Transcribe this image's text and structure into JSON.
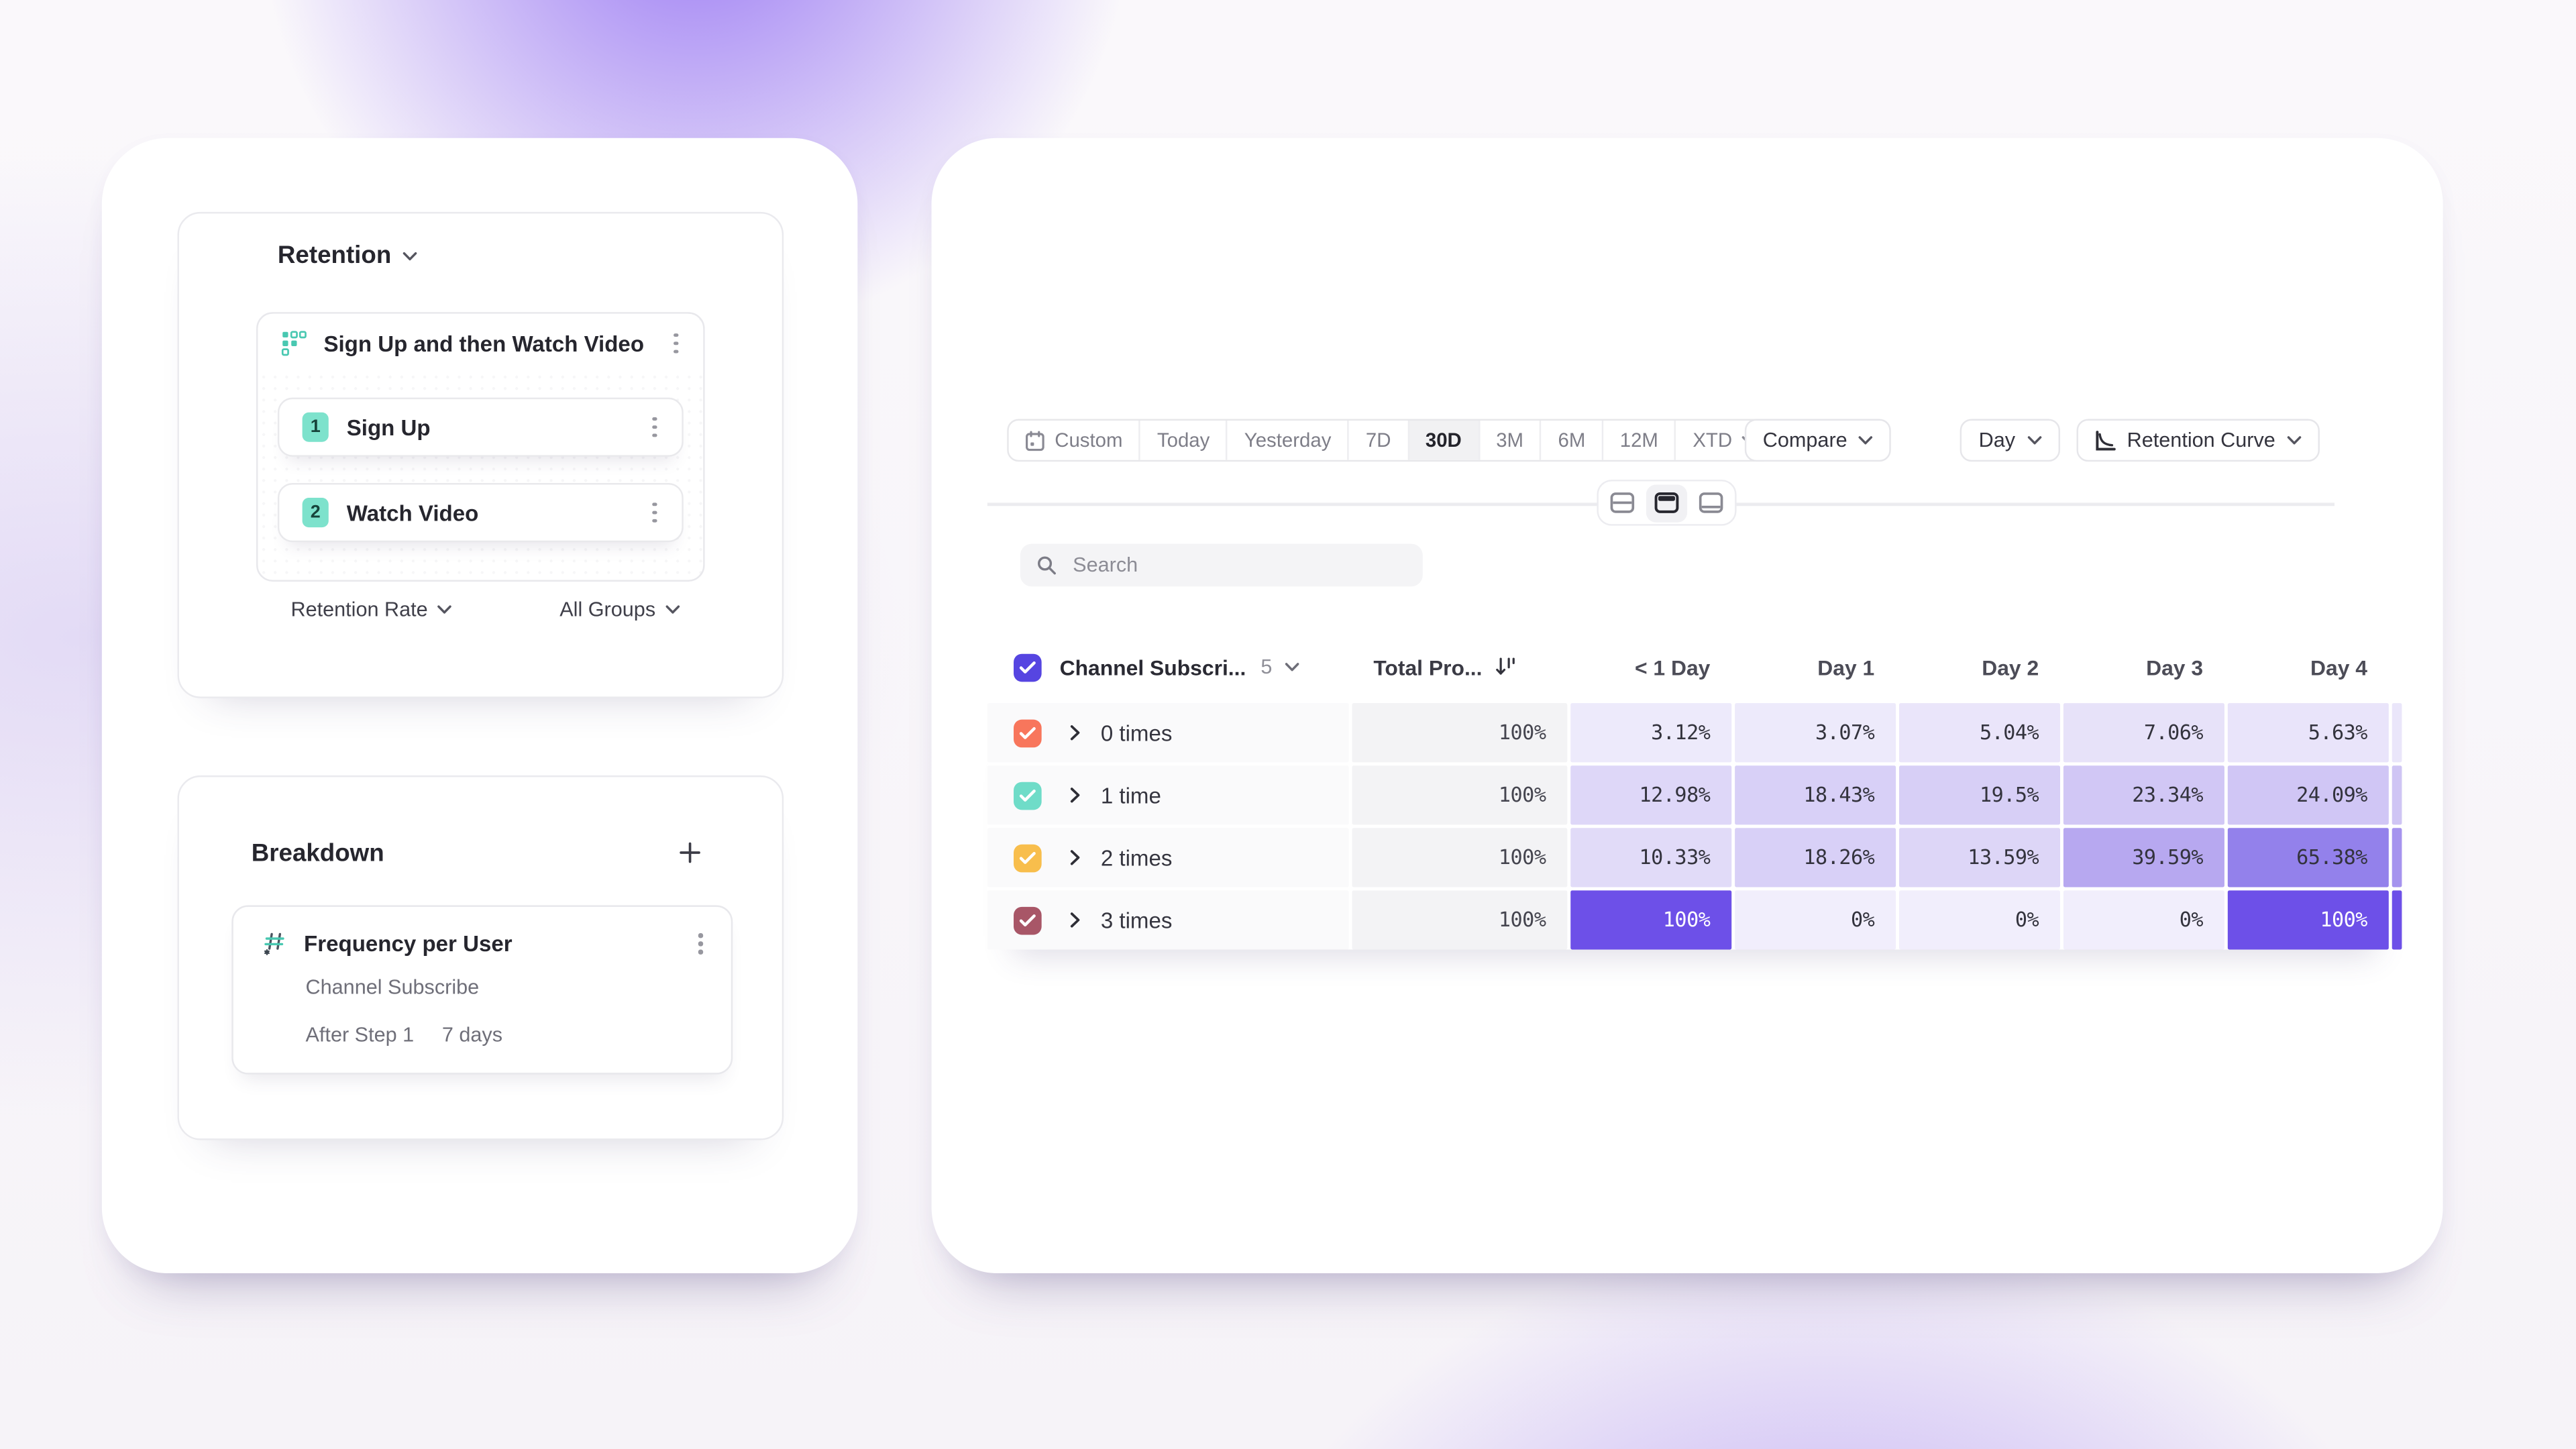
{
  "colors": {
    "accent_purple": "#6D50E8",
    "header_checkbox": "#5645E1",
    "series": [
      "#F8765C",
      "#6FDCC8",
      "#F8BE4C",
      "#A85667"
    ],
    "total_col_bg": "#F3F3F5",
    "label_col_bg": "#FAFAFB",
    "teal_badge": "#7DE2CC"
  },
  "query_panel": {
    "title": "Retention",
    "group_title": "Sign Up and then Watch Video",
    "steps": [
      {
        "num": "1",
        "label": "Sign Up"
      },
      {
        "num": "2",
        "label": "Watch Video"
      }
    ],
    "metric_label": "Retention Rate",
    "groups_label": "All Groups"
  },
  "breakdown_panel": {
    "title": "Breakdown",
    "item_title": "Frequency per User",
    "item_event": "Channel Subscribe",
    "item_after_label": "After Step 1",
    "item_after_value": "7 days"
  },
  "toolbar": {
    "segments": [
      "Custom",
      "Today",
      "Yesterday",
      "7D",
      "30D",
      "3M",
      "6M",
      "12M",
      "XTD"
    ],
    "selected_segment": "30D",
    "compare": "Compare",
    "granularity": "Day",
    "chart_type": "Retention Curve"
  },
  "search": {
    "placeholder": "Search"
  },
  "table": {
    "group_label": "Channel Subscri...",
    "group_count": "5",
    "total_label": "Total Pro...",
    "day_headers": [
      "< 1 Day",
      "Day 1",
      "Day 2",
      "Day 3",
      "Day 4"
    ],
    "rows": [
      {
        "label": "0 times",
        "color": "#F8765C",
        "total": "100%",
        "sliver": "#EAE6FA",
        "cells": [
          [
            "3.12%",
            "#EDEAFB"
          ],
          [
            "3.07%",
            "#EDEAFB"
          ],
          [
            "5.04%",
            "#EAE5FA"
          ],
          [
            "7.06%",
            "#E7E2F9"
          ],
          [
            "5.63%",
            "#E9E4FA"
          ]
        ]
      },
      {
        "label": "1 time",
        "color": "#6FDCC8",
        "total": "100%",
        "sliver": "#CFC5F4",
        "cells": [
          [
            "12.98%",
            "#DED7F8"
          ],
          [
            "18.43%",
            "#D8D0F7"
          ],
          [
            "19.5%",
            "#D7CFF6"
          ],
          [
            "23.34%",
            "#D1C7F5"
          ],
          [
            "24.09%",
            "#D0C6F5"
          ]
        ]
      },
      {
        "label": "2 times",
        "color": "#F8BE4C",
        "total": "100%",
        "sliver": "#A593EE",
        "cells": [
          [
            "10.33%",
            "#E1DBF8"
          ],
          [
            "18.26%",
            "#D8D0F7"
          ],
          [
            "13.59%",
            "#DDD6F7"
          ],
          [
            "39.59%",
            "#B7A8F0"
          ],
          [
            "65.38%",
            "#9381EB"
          ]
        ]
      },
      {
        "label": "3 times",
        "color": "#A85667",
        "total": "100%",
        "sliver": "#6D50E8",
        "cells": [
          [
            "100%",
            "#6D50E8",
            "#FFFFFF"
          ],
          [
            "0%",
            "#F1EEFC"
          ],
          [
            "0%",
            "#F1EEFC"
          ],
          [
            "0%",
            "#F1EEFC"
          ],
          [
            "100%",
            "#6D50E8",
            "#FFFFFF"
          ]
        ]
      }
    ]
  }
}
